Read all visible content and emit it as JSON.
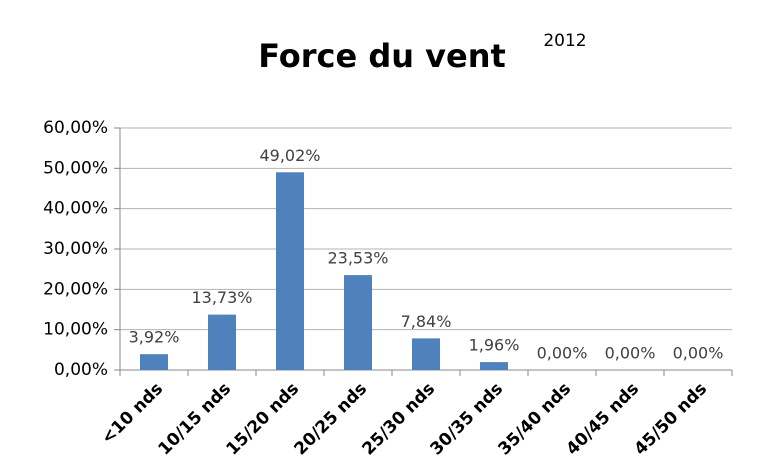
{
  "chart_data": {
    "type": "bar",
    "title": "Force du vent",
    "annotation": "2012",
    "categories": [
      "<10 nds",
      "10/15 nds",
      "15/20 nds",
      "20/25 nds",
      "25/30 nds",
      "30/35 nds",
      "35/40 nds",
      "40/45 nds",
      "45/50 nds"
    ],
    "values": [
      3.92,
      13.73,
      49.02,
      23.53,
      7.84,
      1.96,
      0,
      0,
      0
    ],
    "value_labels": [
      "3,92%",
      "13,73%",
      "49,02%",
      "23,53%",
      "7,84%",
      "1,96%",
      "0,00%",
      "0,00%",
      "0,00%"
    ],
    "color": "#4f81bd",
    "ylim": [
      0,
      60
    ],
    "yticks": [
      {
        "value": 0,
        "label": "0,00%"
      },
      {
        "value": 10,
        "label": "10,00%"
      },
      {
        "value": 20,
        "label": "20,00%"
      },
      {
        "value": 30,
        "label": "30,00%"
      },
      {
        "value": 40,
        "label": "40,00%"
      },
      {
        "value": 50,
        "label": "50,00%"
      },
      {
        "value": 60,
        "label": "60,00%"
      }
    ],
    "grid": true
  }
}
